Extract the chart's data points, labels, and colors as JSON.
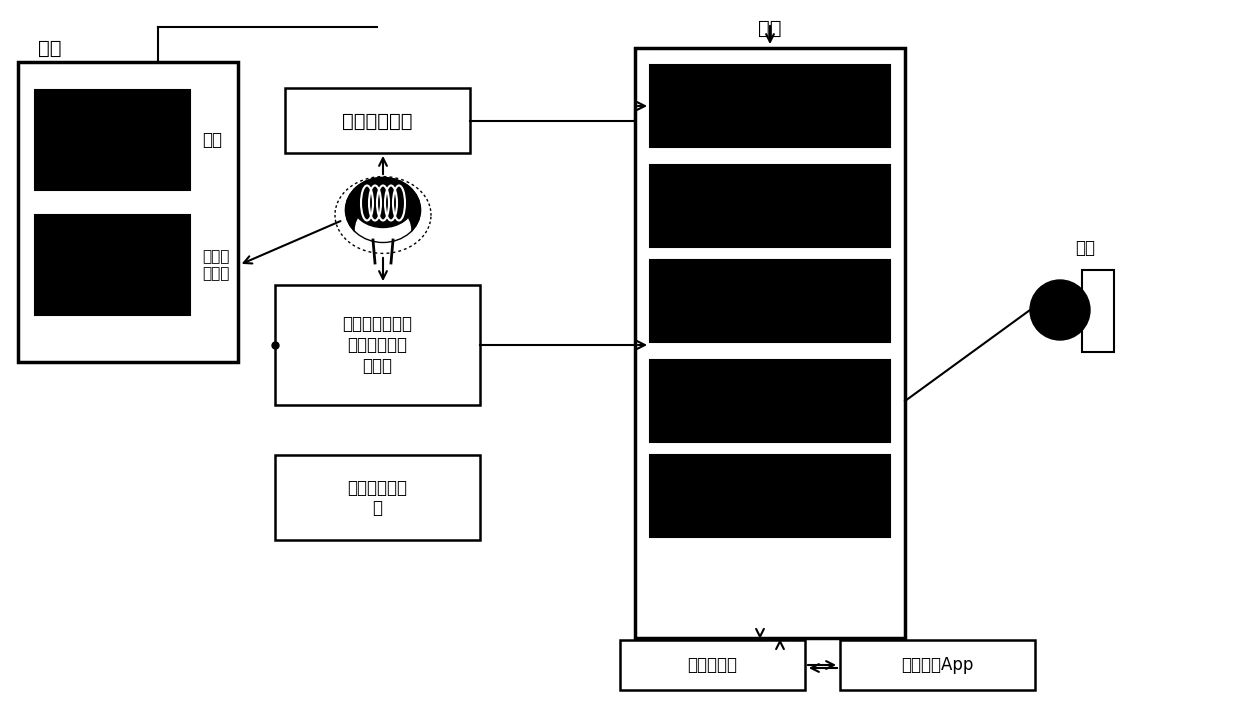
{
  "bg_color": "#ffffff",
  "line_color": "#000000",
  "box_fill": "#000000",
  "lw_thick": 2.0,
  "lw_thin": 1.5,
  "labels": {
    "display": "显示",
    "self_control": "自控",
    "network_share": "网络共\n享控制",
    "eeg": "脑电信号采集",
    "bio": "呼吸率、心率、\n血压及体温信\n号采集",
    "image": "图像与超声信\n号",
    "master": "主控",
    "network_server": "网路服务器",
    "share_app": "共享控制App",
    "wheelchair": "轮椅"
  },
  "fs_large": 14,
  "fs_medium": 12,
  "fs_small": 11
}
